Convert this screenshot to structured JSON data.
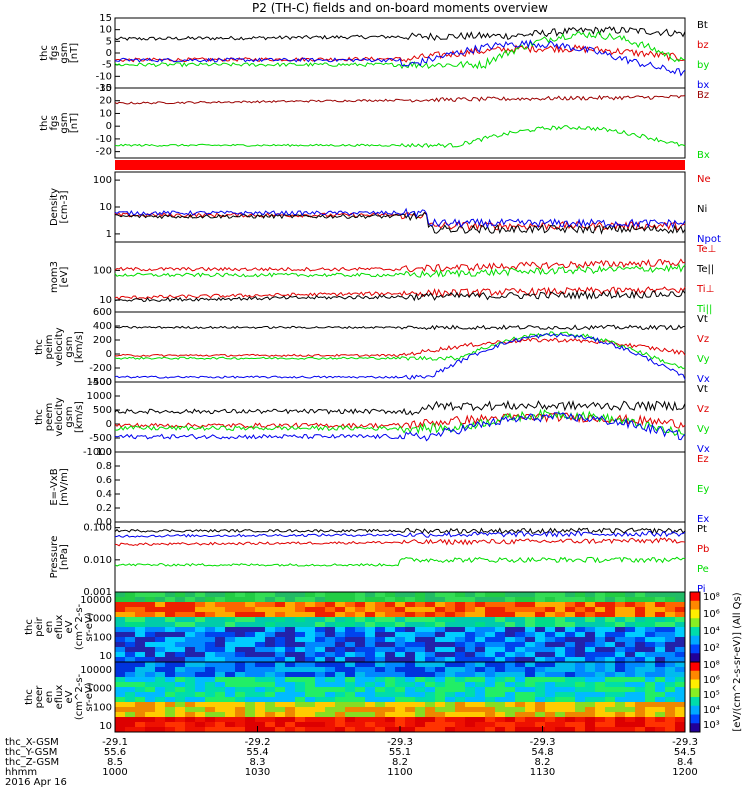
{
  "title": "P2 (TH-C) fields and on-board moments overview",
  "colors": {
    "black": "#000000",
    "red": "#e00000",
    "green": "#00dd00",
    "blue": "#0000ee",
    "darkred": "#9b0000"
  },
  "chart_data": [
    {
      "id": "fgs",
      "type": "line",
      "ylabel": [
        "thc",
        "fgs",
        "gsm",
        "[nT]"
      ],
      "ylim": [
        -15,
        15
      ],
      "yticks": [
        -15,
        -10,
        -5,
        0,
        5,
        10,
        15
      ],
      "series": [
        {
          "name": "Bt",
          "color": "#000000"
        },
        {
          "name": "bz",
          "color": "#e00000"
        },
        {
          "name": "by",
          "color": "#00dd00"
        },
        {
          "name": "bx",
          "color": "#0000ee"
        }
      ]
    },
    {
      "id": "fgs_dsl",
      "type": "line",
      "ylabel": [
        "thc",
        "fgs",
        "gsm",
        "[nT]"
      ],
      "ylim": [
        -25,
        30
      ],
      "yticks": [
        -20,
        -10,
        0,
        10,
        20,
        30
      ],
      "series": [
        {
          "name": "Bz",
          "color": "#9b0000"
        },
        {
          "name": "Bx",
          "color": "#00dd00"
        }
      ]
    },
    {
      "id": "density",
      "type": "line",
      "ylabel": [
        "Density",
        "[cm-3]"
      ],
      "log": true,
      "ylim": [
        0.5,
        200
      ],
      "yticks": [
        "100",
        "10",
        "1"
      ],
      "series": [
        {
          "name": "Ne",
          "color": "#e00000"
        },
        {
          "name": "Ni",
          "color": "#000000"
        },
        {
          "name": "Npot",
          "color": "#0000ee"
        }
      ]
    },
    {
      "id": "temp",
      "type": "line",
      "ylabel": [
        "mom3",
        "[eV]"
      ],
      "log": true,
      "ylim": [
        4,
        900
      ],
      "yticks": [
        "100",
        "10"
      ],
      "series": [
        {
          "name": "Te⊥",
          "color": "#e00000"
        },
        {
          "name": "Te||",
          "color": "#000000"
        },
        {
          "name": "Ti⊥",
          "color": "#e00000"
        },
        {
          "name": "Ti||",
          "color": "#00dd00"
        }
      ]
    },
    {
      "id": "vi",
      "type": "line",
      "ylabel": [
        "thc",
        "peim",
        "velocity",
        "gsm",
        "[km/s]"
      ],
      "ylim": [
        -400,
        600
      ],
      "yticks": [
        -400,
        -200,
        0,
        200,
        400,
        600
      ],
      "series": [
        {
          "name": "Vt",
          "color": "#000000"
        },
        {
          "name": "Vz",
          "color": "#e00000"
        },
        {
          "name": "Vy",
          "color": "#00dd00"
        },
        {
          "name": "Vx",
          "color": "#0000ee"
        }
      ]
    },
    {
      "id": "ve",
      "type": "line",
      "ylabel": [
        "thc",
        "peem",
        "velocity",
        "gsm",
        "[km/s]"
      ],
      "ylim": [
        -1000,
        1500
      ],
      "yticks": [
        -1000,
        -500,
        0,
        500,
        1000,
        1500
      ],
      "series": [
        {
          "name": "Vt",
          "color": "#000000"
        },
        {
          "name": "Vz",
          "color": "#e00000"
        },
        {
          "name": "Vy",
          "color": "#00dd00"
        },
        {
          "name": "Vx",
          "color": "#0000ee"
        }
      ]
    },
    {
      "id": "efield",
      "type": "line",
      "ylabel": [
        "E=-VxB",
        "[mV/m]"
      ],
      "ylim": [
        0,
        1
      ],
      "yticks": [
        "0.0",
        "0.2",
        "0.4",
        "0.6",
        "0.8",
        "1.0"
      ],
      "series": [
        {
          "name": "Ez",
          "color": "#e00000"
        },
        {
          "name": "Ey",
          "color": "#00dd00"
        },
        {
          "name": "Ex",
          "color": "#0000ee"
        }
      ]
    },
    {
      "id": "pressure",
      "type": "line",
      "ylabel": [
        "Pressure",
        "[nPa]"
      ],
      "log": true,
      "ylim": [
        0.001,
        0.15
      ],
      "yticks": [
        "0.100",
        "0.010",
        "0.001"
      ],
      "series": [
        {
          "name": "Pt",
          "color": "#000000"
        },
        {
          "name": "Pb",
          "color": "#e00000"
        },
        {
          "name": "Pe",
          "color": "#00dd00"
        },
        {
          "name": "Pi",
          "color": "#0000ee"
        }
      ]
    },
    {
      "id": "peir",
      "type": "heatmap",
      "ylabel": [
        "thc",
        "peir",
        "en",
        "eflux",
        "eV",
        "(cm^2-s-",
        "sr-eV)"
      ],
      "yticks": [
        "10000",
        "1000",
        "100",
        "10"
      ]
    },
    {
      "id": "peer",
      "type": "heatmap",
      "ylabel": [
        "thc",
        "peer",
        "en",
        "eflux",
        "eV",
        "(cm^2-s-",
        "sr-eV)"
      ],
      "yticks": [
        "10000",
        "1000",
        "100",
        "10"
      ]
    }
  ],
  "colorbar": {
    "label": "[eV/(cm^2-s-sr-eV)] (All Qs)",
    "ticks_top": [
      "10⁸",
      "10⁶",
      "10⁴",
      "10²"
    ],
    "ticks_bottom": [
      "10⁸",
      "10⁶",
      "10⁵",
      "10⁴",
      "10³"
    ]
  },
  "ephemeris": {
    "labels": [
      "thc_X-GSM",
      "thc_Y-GSM",
      "thc_Z-GSM",
      "hhmm",
      "2016 Apr 16"
    ],
    "rows": [
      [
        "-29.1",
        "-29.2",
        "-29.3",
        "-29.3",
        "-29.3"
      ],
      [
        "55.6",
        "55.4",
        "55.1",
        "54.8",
        "54.5"
      ],
      [
        "8.5",
        "8.3",
        "8.2",
        "8.2",
        "8.4"
      ],
      [
        "1000",
        "1030",
        "1100",
        "1130",
        "1200"
      ]
    ]
  }
}
